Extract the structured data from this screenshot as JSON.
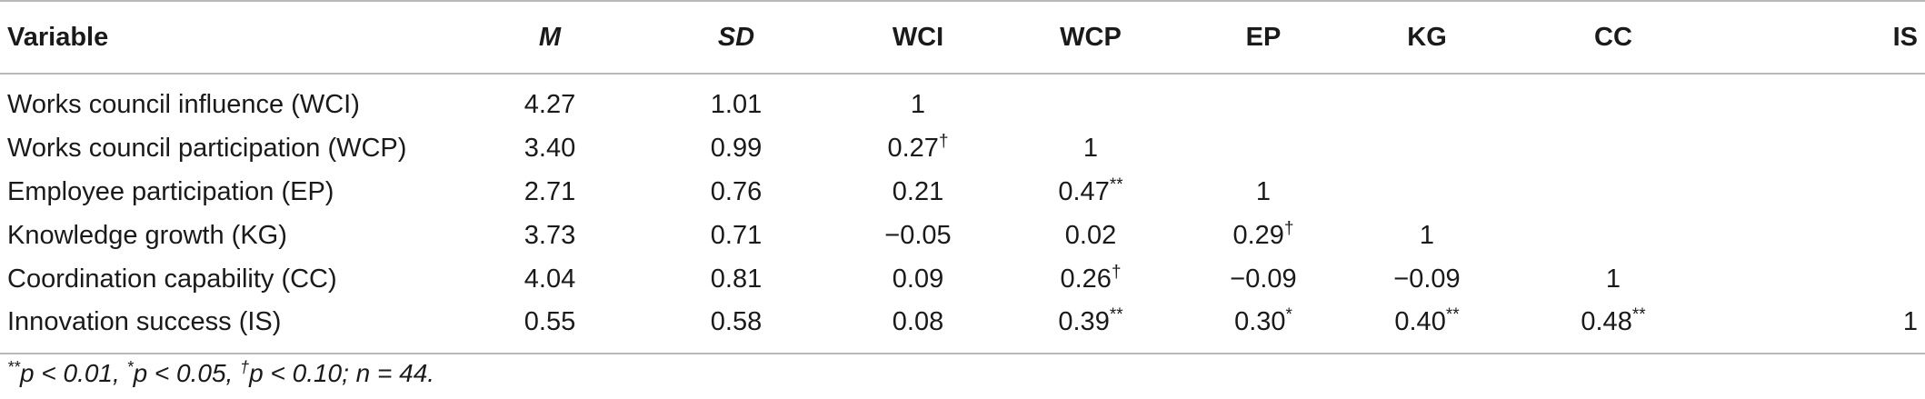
{
  "table": {
    "headers": {
      "variable": "Variable",
      "m": "M",
      "sd": "SD",
      "wci": "WCI",
      "wcp": "WCP",
      "ep": "EP",
      "kg": "KG",
      "cc": "CC",
      "is": "IS"
    },
    "rows": [
      {
        "variable": "Works council influence (WCI)",
        "m": "4.27",
        "sd": "1.01",
        "wci": "1",
        "wci_sup": "",
        "wcp": "",
        "wcp_sup": "",
        "ep": "",
        "ep_sup": "",
        "kg": "",
        "kg_sup": "",
        "cc": "",
        "cc_sup": "",
        "is": ""
      },
      {
        "variable": "Works council participation (WCP)",
        "m": "3.40",
        "sd": "0.99",
        "wci": "0.27",
        "wci_sup": "†",
        "wcp": "1",
        "wcp_sup": "",
        "ep": "",
        "ep_sup": "",
        "kg": "",
        "kg_sup": "",
        "cc": "",
        "cc_sup": "",
        "is": ""
      },
      {
        "variable": "Employee participation (EP)",
        "m": "2.71",
        "sd": "0.76",
        "wci": "0.21",
        "wci_sup": "",
        "wcp": "0.47",
        "wcp_sup": "**",
        "ep": "1",
        "ep_sup": "",
        "kg": "",
        "kg_sup": "",
        "cc": "",
        "cc_sup": "",
        "is": ""
      },
      {
        "variable": "Knowledge growth (KG)",
        "m": "3.73",
        "sd": "0.71",
        "wci": "−0.05",
        "wci_sup": "",
        "wcp": "0.02",
        "wcp_sup": "",
        "ep": "0.29",
        "ep_sup": "†",
        "kg": "1",
        "kg_sup": "",
        "cc": "",
        "cc_sup": "",
        "is": ""
      },
      {
        "variable": "Coordination capability (CC)",
        "m": "4.04",
        "sd": "0.81",
        "wci": "0.09",
        "wci_sup": "",
        "wcp": "0.26",
        "wcp_sup": "†",
        "ep": "−0.09",
        "ep_sup": "",
        "kg": "−0.09",
        "kg_sup": "",
        "cc": "1",
        "cc_sup": "",
        "is": ""
      },
      {
        "variable": "Innovation success (IS)",
        "m": "0.55",
        "sd": "0.58",
        "wci": "0.08",
        "wci_sup": "",
        "wcp": "0.39",
        "wcp_sup": "**",
        "ep": "0.30",
        "ep_sup": "*",
        "kg": "0.40",
        "kg_sup": "**",
        "cc": "0.48",
        "cc_sup": "**",
        "is": "1"
      }
    ]
  },
  "footnote": {
    "sup1": "**",
    "part1": "p < 0.01, ",
    "sup2": "*",
    "part2": "p < 0.05, ",
    "sup3": "†",
    "part3": "p < 0.10; n = 44."
  }
}
